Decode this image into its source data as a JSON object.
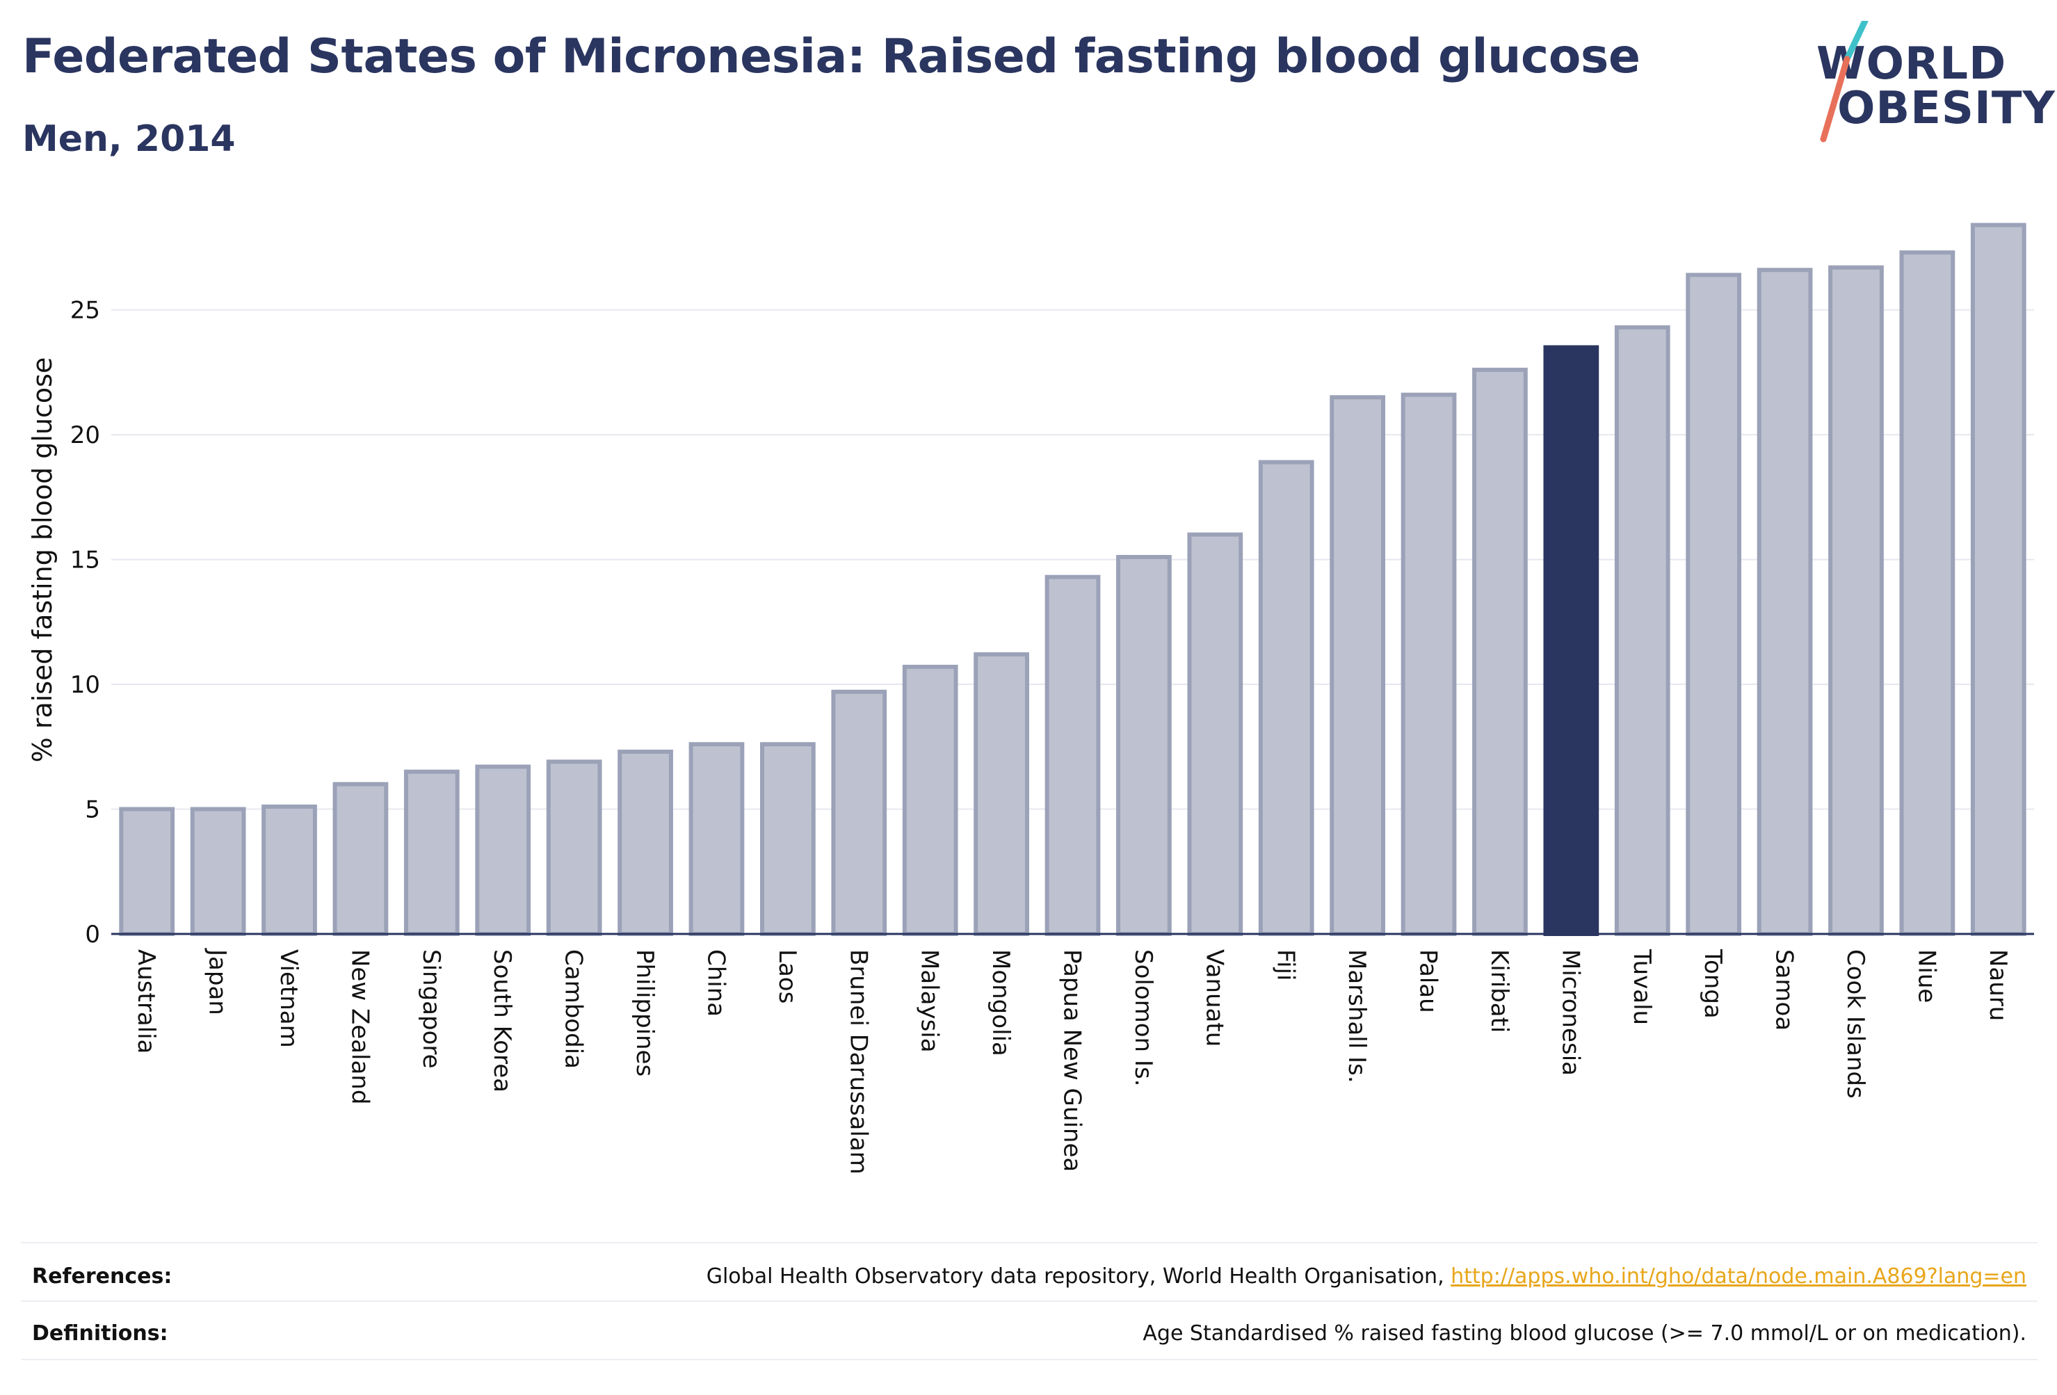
{
  "header": {
    "title": "Federated States of Micronesia: Raised fasting blood glucose",
    "subtitle": "Men, 2014"
  },
  "logo": {
    "line1": "WORLD",
    "line2": "OBESITY",
    "accent_colors": [
      "#3fc1c9",
      "#e8705a"
    ]
  },
  "colors": {
    "bar": "#bec2d0",
    "bar_border": "#9ba2b8",
    "highlight": "#2a3560",
    "grid": "#e6e8ef",
    "axis": "#2a3560"
  },
  "chart_data": {
    "type": "bar",
    "title": "Federated States of Micronesia: Raised fasting blood glucose",
    "subtitle": "Men, 2014",
    "xlabel": "",
    "ylabel": "% raised fasting blood glucose",
    "ylim": [
      0,
      28.5
    ],
    "yticks": [
      0,
      5,
      10,
      15,
      20,
      25
    ],
    "grid": true,
    "highlight": "Micronesia",
    "categories": [
      "Australia",
      "Japan",
      "Vietnam",
      "New Zealand",
      "Singapore",
      "South Korea",
      "Cambodia",
      "Philippines",
      "China",
      "Laos",
      "Brunei Darussalam",
      "Malaysia",
      "Mongolia",
      "Papua New Guinea",
      "Solomon Is.",
      "Vanuatu",
      "Fiji",
      "Marshall Is.",
      "Palau",
      "Kiribati",
      "Micronesia",
      "Tuvalu",
      "Tonga",
      "Samoa",
      "Cook Islands",
      "Niue",
      "Nauru"
    ],
    "values": [
      5.0,
      5.0,
      5.1,
      6.0,
      6.5,
      6.7,
      6.9,
      7.3,
      7.6,
      7.6,
      9.7,
      10.7,
      11.2,
      14.3,
      15.1,
      16.0,
      18.9,
      21.5,
      21.6,
      22.6,
      23.5,
      24.3,
      26.4,
      26.6,
      26.7,
      27.3,
      28.4
    ]
  },
  "footer": {
    "references_label": "References:",
    "references_text": "Global Health Observatory data repository, World Health Organisation, ",
    "references_link": "http://apps.who.int/gho/data/node.main.A869?lang=en",
    "definitions_label": "Definitions:",
    "definitions_text": "Age Standardised % raised fasting blood glucose (>= 7.0 mmol/L or on medication)."
  }
}
